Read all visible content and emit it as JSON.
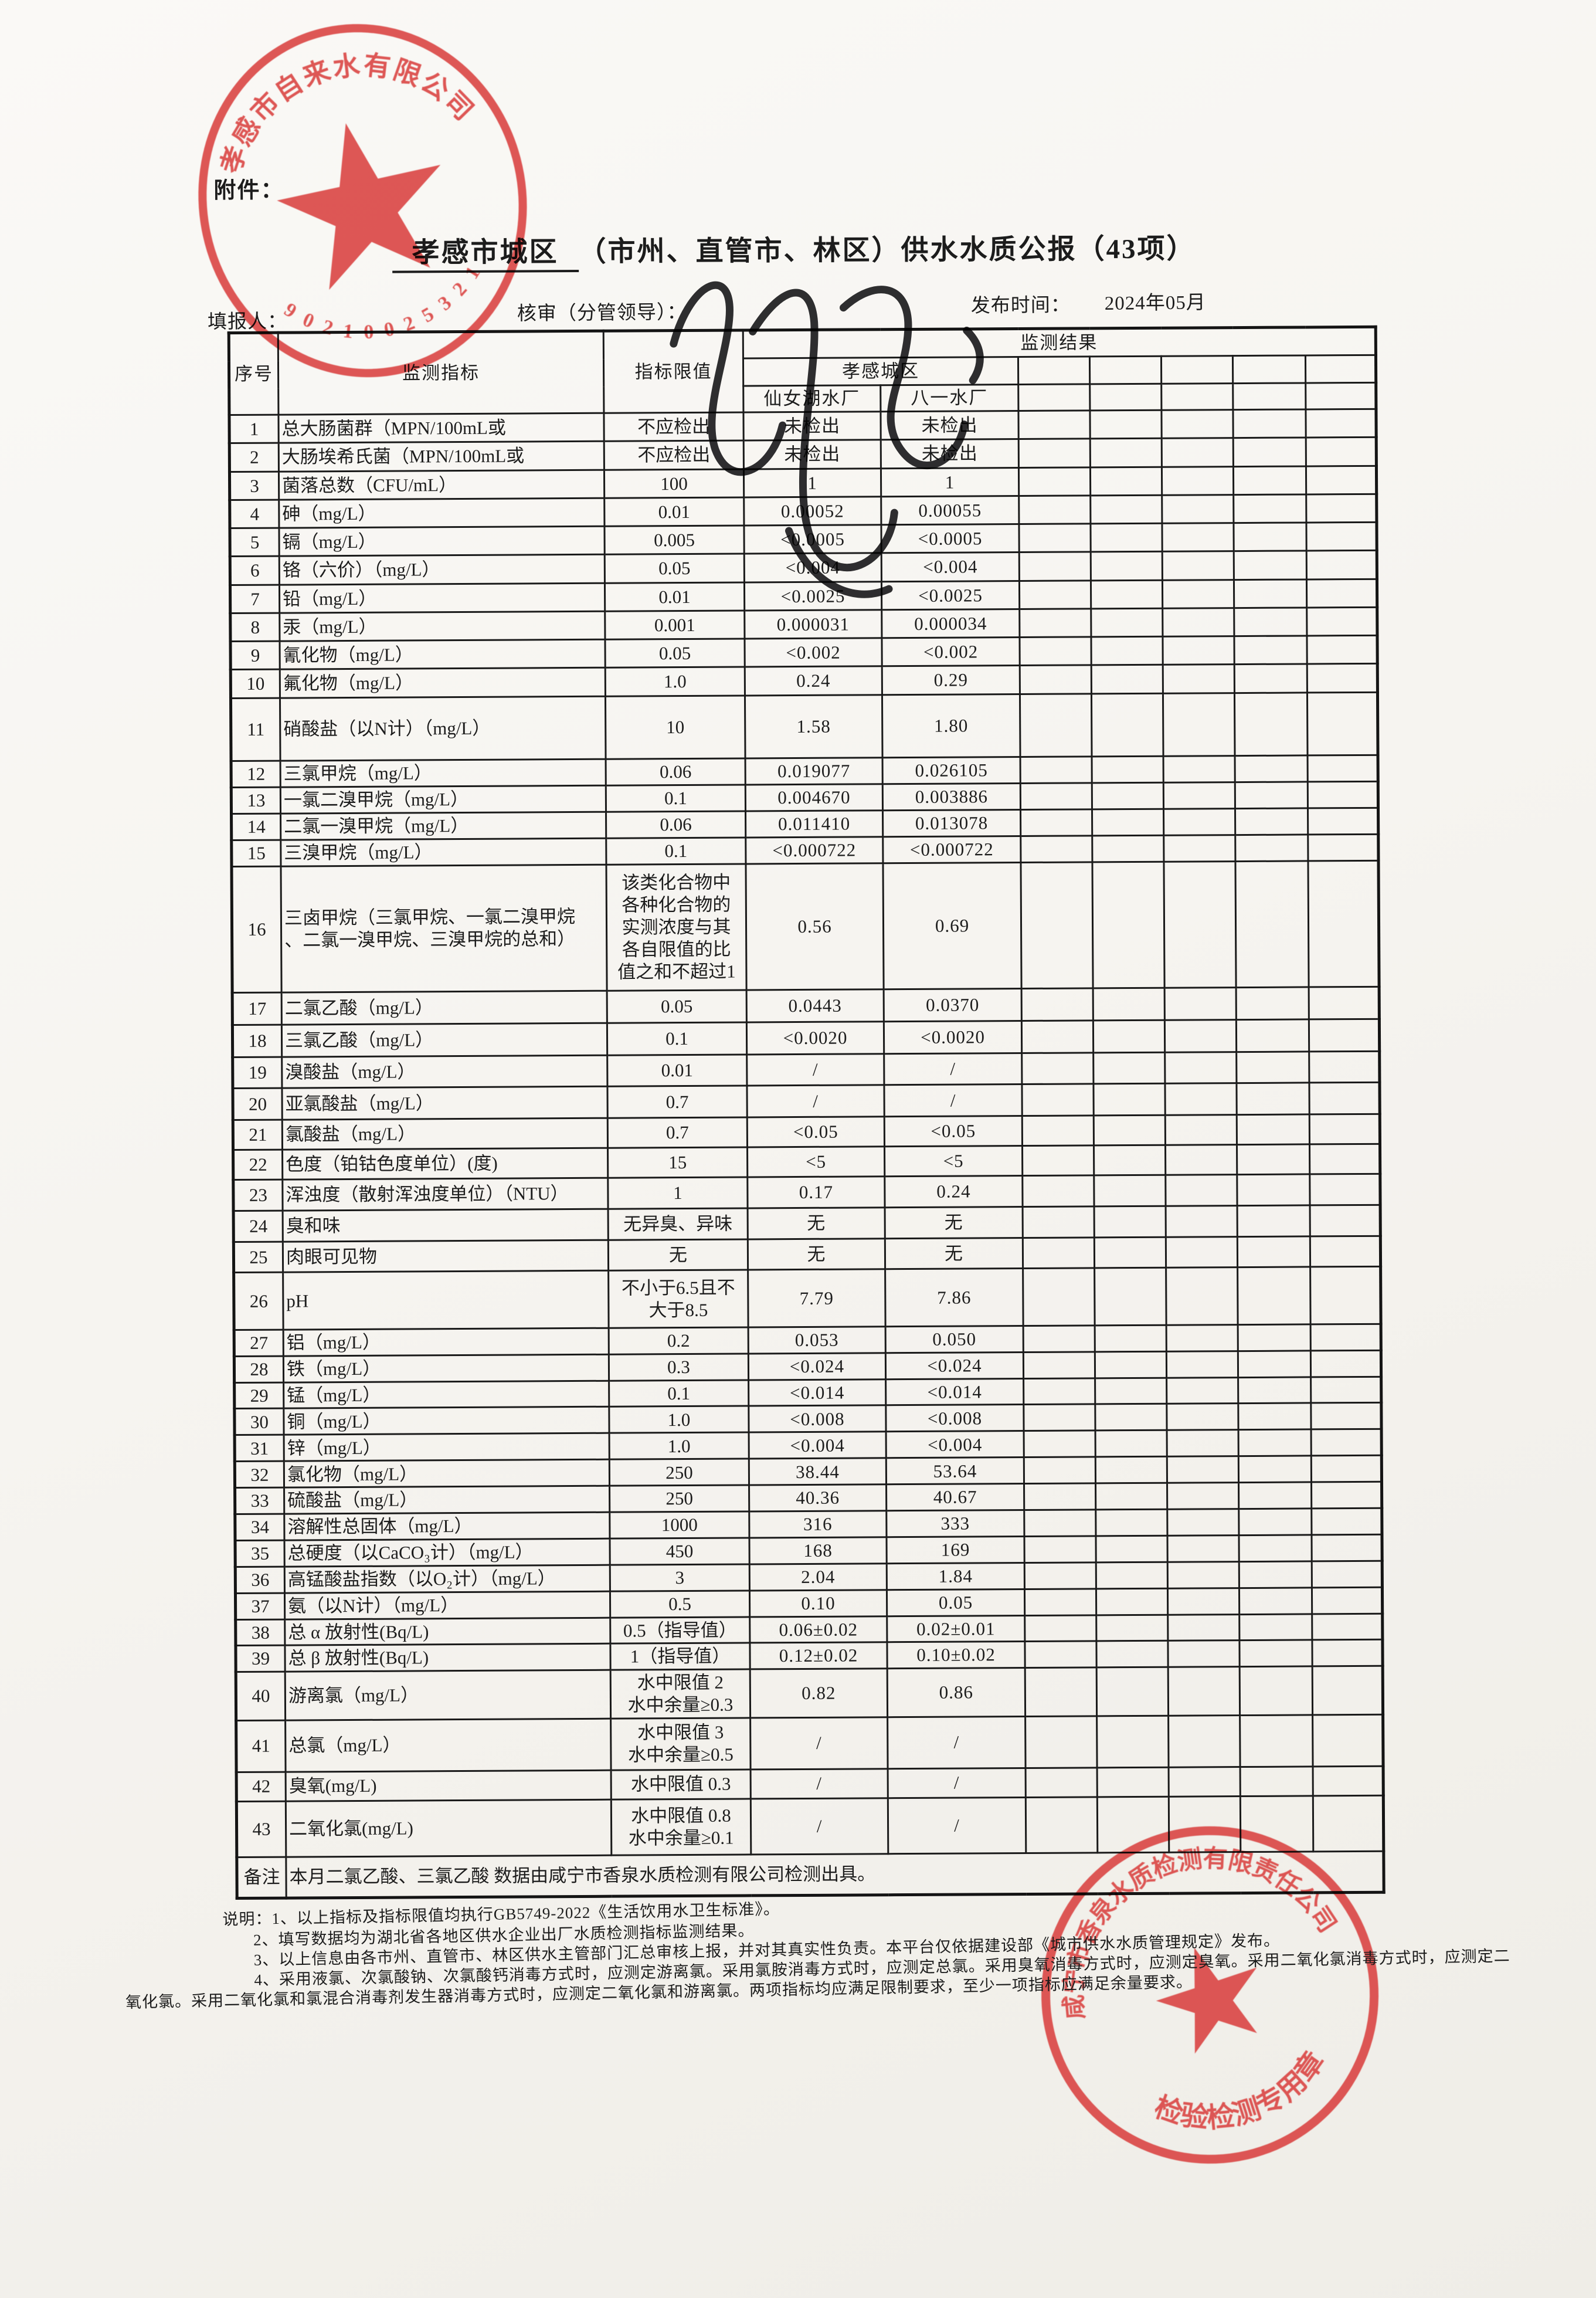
{
  "page": {
    "attachment_label": "附件：",
    "title_part1": "孝感市城区",
    "title_part2": "（市州、直管市、林区）供水水质公报（43项）",
    "meta": {
      "filler_label": "填报人：",
      "reviewer_label": "核审（分管领导）：",
      "publish_label": "发布时间：",
      "publish_value": "2024年05月"
    }
  },
  "table": {
    "headers": {
      "seq": "序号",
      "indicator": "监测指标",
      "limit": "指标限值",
      "result": "监测结果",
      "district": "孝感城区",
      "plant1": "仙女湖水厂",
      "plant2": "八一水厂"
    },
    "rows": [
      {
        "no": "1",
        "name": "总大肠菌群（MPN/100mL或",
        "limit": "不应检出",
        "v1": "未检出",
        "v2": "未检出"
      },
      {
        "no": "2",
        "name": "大肠埃希氏菌（MPN/100mL或",
        "limit": "不应检出",
        "v1": "未检出",
        "v2": "未检出"
      },
      {
        "no": "3",
        "name": "菌落总数（CFU/mL）",
        "limit": "100",
        "v1": "1",
        "v2": "1"
      },
      {
        "no": "4",
        "name": "砷（mg/L）",
        "limit": "0.01",
        "v1": "0.00052",
        "v2": "0.00055"
      },
      {
        "no": "5",
        "name": "镉（mg/L）",
        "limit": "0.005",
        "v1": "<0.0005",
        "v2": "<0.0005"
      },
      {
        "no": "6",
        "name": "铬（六价）（mg/L）",
        "limit": "0.05",
        "v1": "<0.004",
        "v2": "<0.004"
      },
      {
        "no": "7",
        "name": "铅（mg/L）",
        "limit": "0.01",
        "v1": "<0.0025",
        "v2": "<0.0025"
      },
      {
        "no": "8",
        "name": "汞（mg/L）",
        "limit": "0.001",
        "v1": "0.000031",
        "v2": "0.000034"
      },
      {
        "no": "9",
        "name": "氰化物（mg/L）",
        "limit": "0.05",
        "v1": "<0.002",
        "v2": "<0.002"
      },
      {
        "no": "10",
        "name": "氟化物（mg/L）",
        "limit": "1.0",
        "v1": "0.24",
        "v2": "0.29"
      },
      {
        "no": "11",
        "name": "硝酸盐（以N计）（mg/L）",
        "limit": "10",
        "v1": "1.58",
        "v2": "1.80"
      },
      {
        "no": "12",
        "name": "三氯甲烷（mg/L）",
        "limit": "0.06",
        "v1": "0.019077",
        "v2": "0.026105"
      },
      {
        "no": "13",
        "name": "一氯二溴甲烷（mg/L）",
        "limit": "0.1",
        "v1": "0.004670",
        "v2": "0.003886"
      },
      {
        "no": "14",
        "name": "二氯一溴甲烷（mg/L）",
        "limit": "0.06",
        "v1": "0.011410",
        "v2": "0.013078"
      },
      {
        "no": "15",
        "name": "三溴甲烷（mg/L）",
        "limit": "0.1",
        "v1": "<0.000722",
        "v2": "<0.000722"
      },
      {
        "no": "16",
        "name": "三卤甲烷（三氯甲烷、一氯二溴甲烷\n、二氯一溴甲烷、三溴甲烷的总和）",
        "limit": "该类化合物中\n各种化合物的\n实测浓度与其\n各自限值的比\n值之和不超过1",
        "v1": "0.56",
        "v2": "0.69"
      },
      {
        "no": "17",
        "name": "二氯乙酸（mg/L）",
        "limit": "0.05",
        "v1": "0.0443",
        "v2": "0.0370"
      },
      {
        "no": "18",
        "name": "三氯乙酸（mg/L）",
        "limit": "0.1",
        "v1": "<0.0020",
        "v2": "<0.0020"
      },
      {
        "no": "19",
        "name": "溴酸盐（mg/L）",
        "limit": "0.01",
        "v1": "/",
        "v2": "/"
      },
      {
        "no": "20",
        "name": "亚氯酸盐（mg/L）",
        "limit": "0.7",
        "v1": "/",
        "v2": "/"
      },
      {
        "no": "21",
        "name": "氯酸盐（mg/L）",
        "limit": "0.7",
        "v1": "<0.05",
        "v2": "<0.05"
      },
      {
        "no": "22",
        "name": "色度（铂钴色度单位）(度)",
        "limit": "15",
        "v1": "<5",
        "v2": "<5"
      },
      {
        "no": "23",
        "name": "浑浊度（散射浑浊度单位）（NTU）",
        "limit": "1",
        "v1": "0.17",
        "v2": "0.24"
      },
      {
        "no": "24",
        "name": "臭和味",
        "limit": "无异臭、异味",
        "v1": "无",
        "v2": "无"
      },
      {
        "no": "25",
        "name": "肉眼可见物",
        "limit": "无",
        "v1": "无",
        "v2": "无"
      },
      {
        "no": "26",
        "name": "pH",
        "limit": "不小于6.5且不\n大于8.5",
        "v1": "7.79",
        "v2": "7.86"
      },
      {
        "no": "27",
        "name": "铝（mg/L）",
        "limit": "0.2",
        "v1": "0.053",
        "v2": "0.050"
      },
      {
        "no": "28",
        "name": "铁（mg/L）",
        "limit": "0.3",
        "v1": "<0.024",
        "v2": "<0.024"
      },
      {
        "no": "29",
        "name": "锰（mg/L）",
        "limit": "0.1",
        "v1": "<0.014",
        "v2": "<0.014"
      },
      {
        "no": "30",
        "name": "铜（mg/L）",
        "limit": "1.0",
        "v1": "<0.008",
        "v2": "<0.008"
      },
      {
        "no": "31",
        "name": "锌（mg/L）",
        "limit": "1.0",
        "v1": "<0.004",
        "v2": "<0.004"
      },
      {
        "no": "32",
        "name": "氯化物（mg/L）",
        "limit": "250",
        "v1": "38.44",
        "v2": "53.64"
      },
      {
        "no": "33",
        "name": "硫酸盐（mg/L）",
        "limit": "250",
        "v1": "40.36",
        "v2": "40.67"
      },
      {
        "no": "34",
        "name": "溶解性总固体（mg/L）",
        "limit": "1000",
        "v1": "316",
        "v2": "333"
      },
      {
        "no": "35",
        "name": "总硬度（以CaCO₃计）（mg/L）",
        "limit": "450",
        "v1": "168",
        "v2": "169"
      },
      {
        "no": "36",
        "name": "高锰酸盐指数（以O₂计）（mg/L）",
        "limit": "3",
        "v1": "2.04",
        "v2": "1.84"
      },
      {
        "no": "37",
        "name": "氨（以N计）（mg/L）",
        "limit": "0.5",
        "v1": "0.10",
        "v2": "0.05"
      },
      {
        "no": "38",
        "name": "总 α 放射性(Bq/L)",
        "limit": "0.5（指导值）",
        "v1": "0.06±0.02",
        "v2": "0.02±0.01"
      },
      {
        "no": "39",
        "name": "总 β 放射性(Bq/L)",
        "limit": "1（指导值）",
        "v1": "0.12±0.02",
        "v2": "0.10±0.02"
      },
      {
        "no": "40",
        "name": "游离氯（mg/L）",
        "limit": "水中限值 2\n水中余量≥0.3",
        "v1": "0.82",
        "v2": "0.86"
      },
      {
        "no": "41",
        "name": "总氯（mg/L）",
        "limit": "水中限值 3\n水中余量≥0.5",
        "v1": "/",
        "v2": "/"
      },
      {
        "no": "42",
        "name": "臭氧(mg/L)",
        "limit": "水中限值 0.3",
        "v1": "/",
        "v2": "/"
      },
      {
        "no": "43",
        "name": "二氧化氯(mg/L)",
        "limit": "水中限值 0.8\n水中余量≥0.1",
        "v1": "/",
        "v2": "/"
      }
    ],
    "remark_label": "备注",
    "remark": "本月二氯乙酸、三氯乙酸 数据由咸宁市香泉水质检测有限公司检测出具。"
  },
  "notes": [
    "说明：1、以上指标及指标限值均执行GB5749-2022《生活饮用水卫生标准》。",
    "2、填写数据均为湖北省各地区供水企业出厂水质检测指标监测结果。",
    "3、以上信息由各市州、直管市、林区供水主管部门汇总审核上报，并对其真实性负责。本平台仅依据建设部《城市供水水质管理规定》发布。",
    "4、采用液氯、次氯酸钠、次氯酸钙消毒方式时，应测定游离氯。采用氯胺消毒方式时，应测定总氯。采用臭氧消毒方式时，应测定臭氧。采用二氧化氯消毒方式时，应测定二",
    "氧化氯。采用二氧化氯和氯混合消毒剂发生器消毒方式时，应测定二氧化氯和游离氯。两项指标均应满足限制要求，至少一项指标应满足余量要求。"
  ],
  "stamps": {
    "company": {
      "arc_text": "孝感市自来水有限公司",
      "code": "90210025321"
    },
    "lab": {
      "arc_text": "咸宁市香泉水质检测有限责任公司",
      "bottom_text": "检验检测专用章"
    }
  },
  "colors": {
    "stamp_red": "#d9403e",
    "ink": "#1c1c1c",
    "paper": "#f6f4f0"
  }
}
